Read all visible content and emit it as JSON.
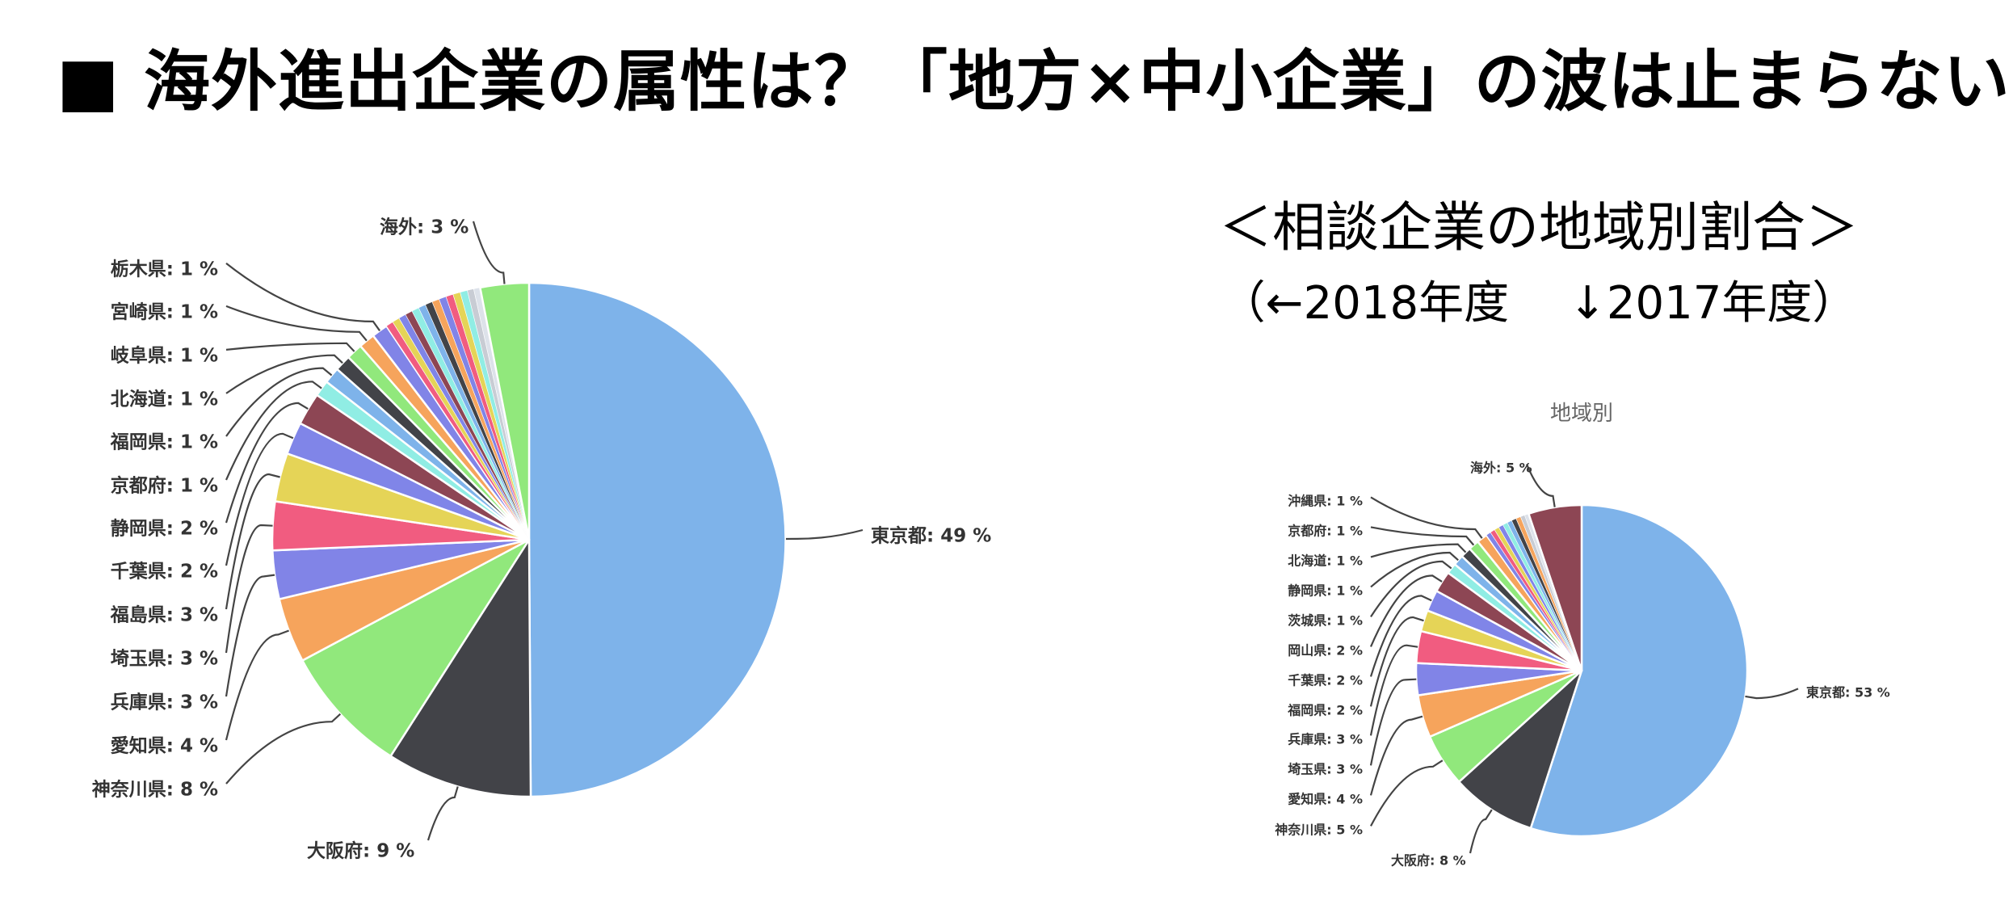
{
  "header": {
    "title": "■ 海外進出企業の属性は？「地方×中小企業」の波は止まらない"
  },
  "section": {
    "title": "＜相談企業の地域別割合＞",
    "note": "（←2018年度　 ↓2017年度）"
  },
  "chart_data": [
    {
      "type": "pie",
      "year": "2018年度",
      "title": "",
      "slices": [
        {
          "label": "東京都",
          "value": 49,
          "text": "東京都: 49 %",
          "color": "#7eb3ea"
        },
        {
          "label": "大阪府",
          "value": 9,
          "text": "大阪府: 9 %",
          "color": "#424348"
        },
        {
          "label": "神奈川県",
          "value": 8,
          "text": "神奈川県: 8 %",
          "color": "#91e87c"
        },
        {
          "label": "愛知県",
          "value": 4,
          "text": "愛知県: 4 %",
          "color": "#f6a45c"
        },
        {
          "label": "兵庫県",
          "value": 3,
          "text": "兵庫県: 3 %",
          "color": "#8184e7"
        },
        {
          "label": "埼玉県",
          "value": 3,
          "text": "埼玉県: 3 %",
          "color": "#f15c80"
        },
        {
          "label": "福島県",
          "value": 3,
          "text": "福島県: 3 %",
          "color": "#e5d457"
        },
        {
          "label": "千葉県",
          "value": 2,
          "text": "千葉県: 2 %",
          "color": "#8085e8"
        },
        {
          "label": "静岡県",
          "value": 2,
          "text": "静岡県: 2 %",
          "color": "#8d4654"
        },
        {
          "label": "京都府",
          "value": 1,
          "text": "京都府: 1 %",
          "color": "#90ede4"
        },
        {
          "label": "福岡県",
          "value": 1,
          "text": "福岡県: 1 %",
          "color": "#7eb3ea"
        },
        {
          "label": "北海道",
          "value": 1,
          "text": "北海道: 1 %",
          "color": "#424348"
        },
        {
          "label": "岐阜県",
          "value": 1,
          "text": "岐阜県: 1 %",
          "color": "#91e87c"
        },
        {
          "label": "宮崎県",
          "value": 1,
          "text": "宮崎県: 1 %",
          "color": "#f6a45c"
        },
        {
          "label": "栃木県",
          "value": 1,
          "text": "栃木県: 1 %",
          "color": "#8184e7"
        },
        {
          "label": "",
          "value": 0.45,
          "text": "",
          "color": "#f15c80"
        },
        {
          "label": "",
          "value": 0.45,
          "text": "",
          "color": "#e5d457"
        },
        {
          "label": "",
          "value": 0.45,
          "text": "",
          "color": "#8085e8"
        },
        {
          "label": "",
          "value": 0.45,
          "text": "",
          "color": "#8d4654"
        },
        {
          "label": "",
          "value": 0.45,
          "text": "",
          "color": "#90ede4"
        },
        {
          "label": "",
          "value": 0.45,
          "text": "",
          "color": "#7eb3ea"
        },
        {
          "label": "",
          "value": 0.45,
          "text": "",
          "color": "#424348"
        },
        {
          "label": "",
          "value": 0.45,
          "text": "",
          "color": "#f6a45c"
        },
        {
          "label": "",
          "value": 0.45,
          "text": "",
          "color": "#8184e7"
        },
        {
          "label": "",
          "value": 0.45,
          "text": "",
          "color": "#f15c80"
        },
        {
          "label": "",
          "value": 0.45,
          "text": "",
          "color": "#e5d457"
        },
        {
          "label": "",
          "value": 0.45,
          "text": "",
          "color": "#90ede4"
        },
        {
          "label": "",
          "value": 0.4,
          "text": "",
          "color": "#c8ccd4"
        },
        {
          "label": "",
          "value": 0.4,
          "text": "",
          "color": "#dde2ea"
        },
        {
          "label": "海外",
          "value": 3,
          "text": "海外: 3 %",
          "color": "#91e87c"
        }
      ]
    },
    {
      "type": "pie",
      "year": "2017年度",
      "title": "地域別",
      "slices": [
        {
          "label": "東京都",
          "value": 53,
          "text": "東京都: 53 %",
          "color": "#7eb3ea"
        },
        {
          "label": "大阪府",
          "value": 8,
          "text": "大阪府: 8 %",
          "color": "#424348"
        },
        {
          "label": "神奈川県",
          "value": 5,
          "text": "神奈川県: 5 %",
          "color": "#91e87c"
        },
        {
          "label": "愛知県",
          "value": 4,
          "text": "愛知県: 4 %",
          "color": "#f6a45c"
        },
        {
          "label": "埼玉県",
          "value": 3,
          "text": "埼玉県: 3 %",
          "color": "#8184e7"
        },
        {
          "label": "兵庫県",
          "value": 3,
          "text": "兵庫県: 3 %",
          "color": "#f15c80"
        },
        {
          "label": "福岡県",
          "value": 2,
          "text": "福岡県: 2 %",
          "color": "#e5d457"
        },
        {
          "label": "千葉県",
          "value": 2,
          "text": "千葉県: 2 %",
          "color": "#8085e8"
        },
        {
          "label": "岡山県",
          "value": 2,
          "text": "岡山県: 2 %",
          "color": "#8d4654"
        },
        {
          "label": "茨城県",
          "value": 1,
          "text": "茨城県: 1 %",
          "color": "#90ede4"
        },
        {
          "label": "静岡県",
          "value": 1,
          "text": "静岡県: 1 %",
          "color": "#7eb3ea"
        },
        {
          "label": "北海道",
          "value": 1,
          "text": "北海道: 1 %",
          "color": "#424348"
        },
        {
          "label": "京都府",
          "value": 1,
          "text": "京都府: 1 %",
          "color": "#91e87c"
        },
        {
          "label": "沖縄県",
          "value": 1,
          "text": "沖縄県: 1 %",
          "color": "#f6a45c"
        },
        {
          "label": "",
          "value": 0.45,
          "text": "",
          "color": "#8184e7"
        },
        {
          "label": "",
          "value": 0.45,
          "text": "",
          "color": "#f15c80"
        },
        {
          "label": "",
          "value": 0.45,
          "text": "",
          "color": "#e5d457"
        },
        {
          "label": "",
          "value": 0.45,
          "text": "",
          "color": "#8085e8"
        },
        {
          "label": "",
          "value": 0.45,
          "text": "",
          "color": "#90ede4"
        },
        {
          "label": "",
          "value": 0.45,
          "text": "",
          "color": "#7eb3ea"
        },
        {
          "label": "",
          "value": 0.45,
          "text": "",
          "color": "#424348"
        },
        {
          "label": "",
          "value": 0.45,
          "text": "",
          "color": "#f6a45c"
        },
        {
          "label": "",
          "value": 0.4,
          "text": "",
          "color": "#c8ccd4"
        },
        {
          "label": "",
          "value": 0.4,
          "text": "",
          "color": "#dde2ea"
        },
        {
          "label": "海外",
          "value": 5,
          "text": "海外: 5 %",
          "color": "#8d4654"
        }
      ]
    }
  ]
}
